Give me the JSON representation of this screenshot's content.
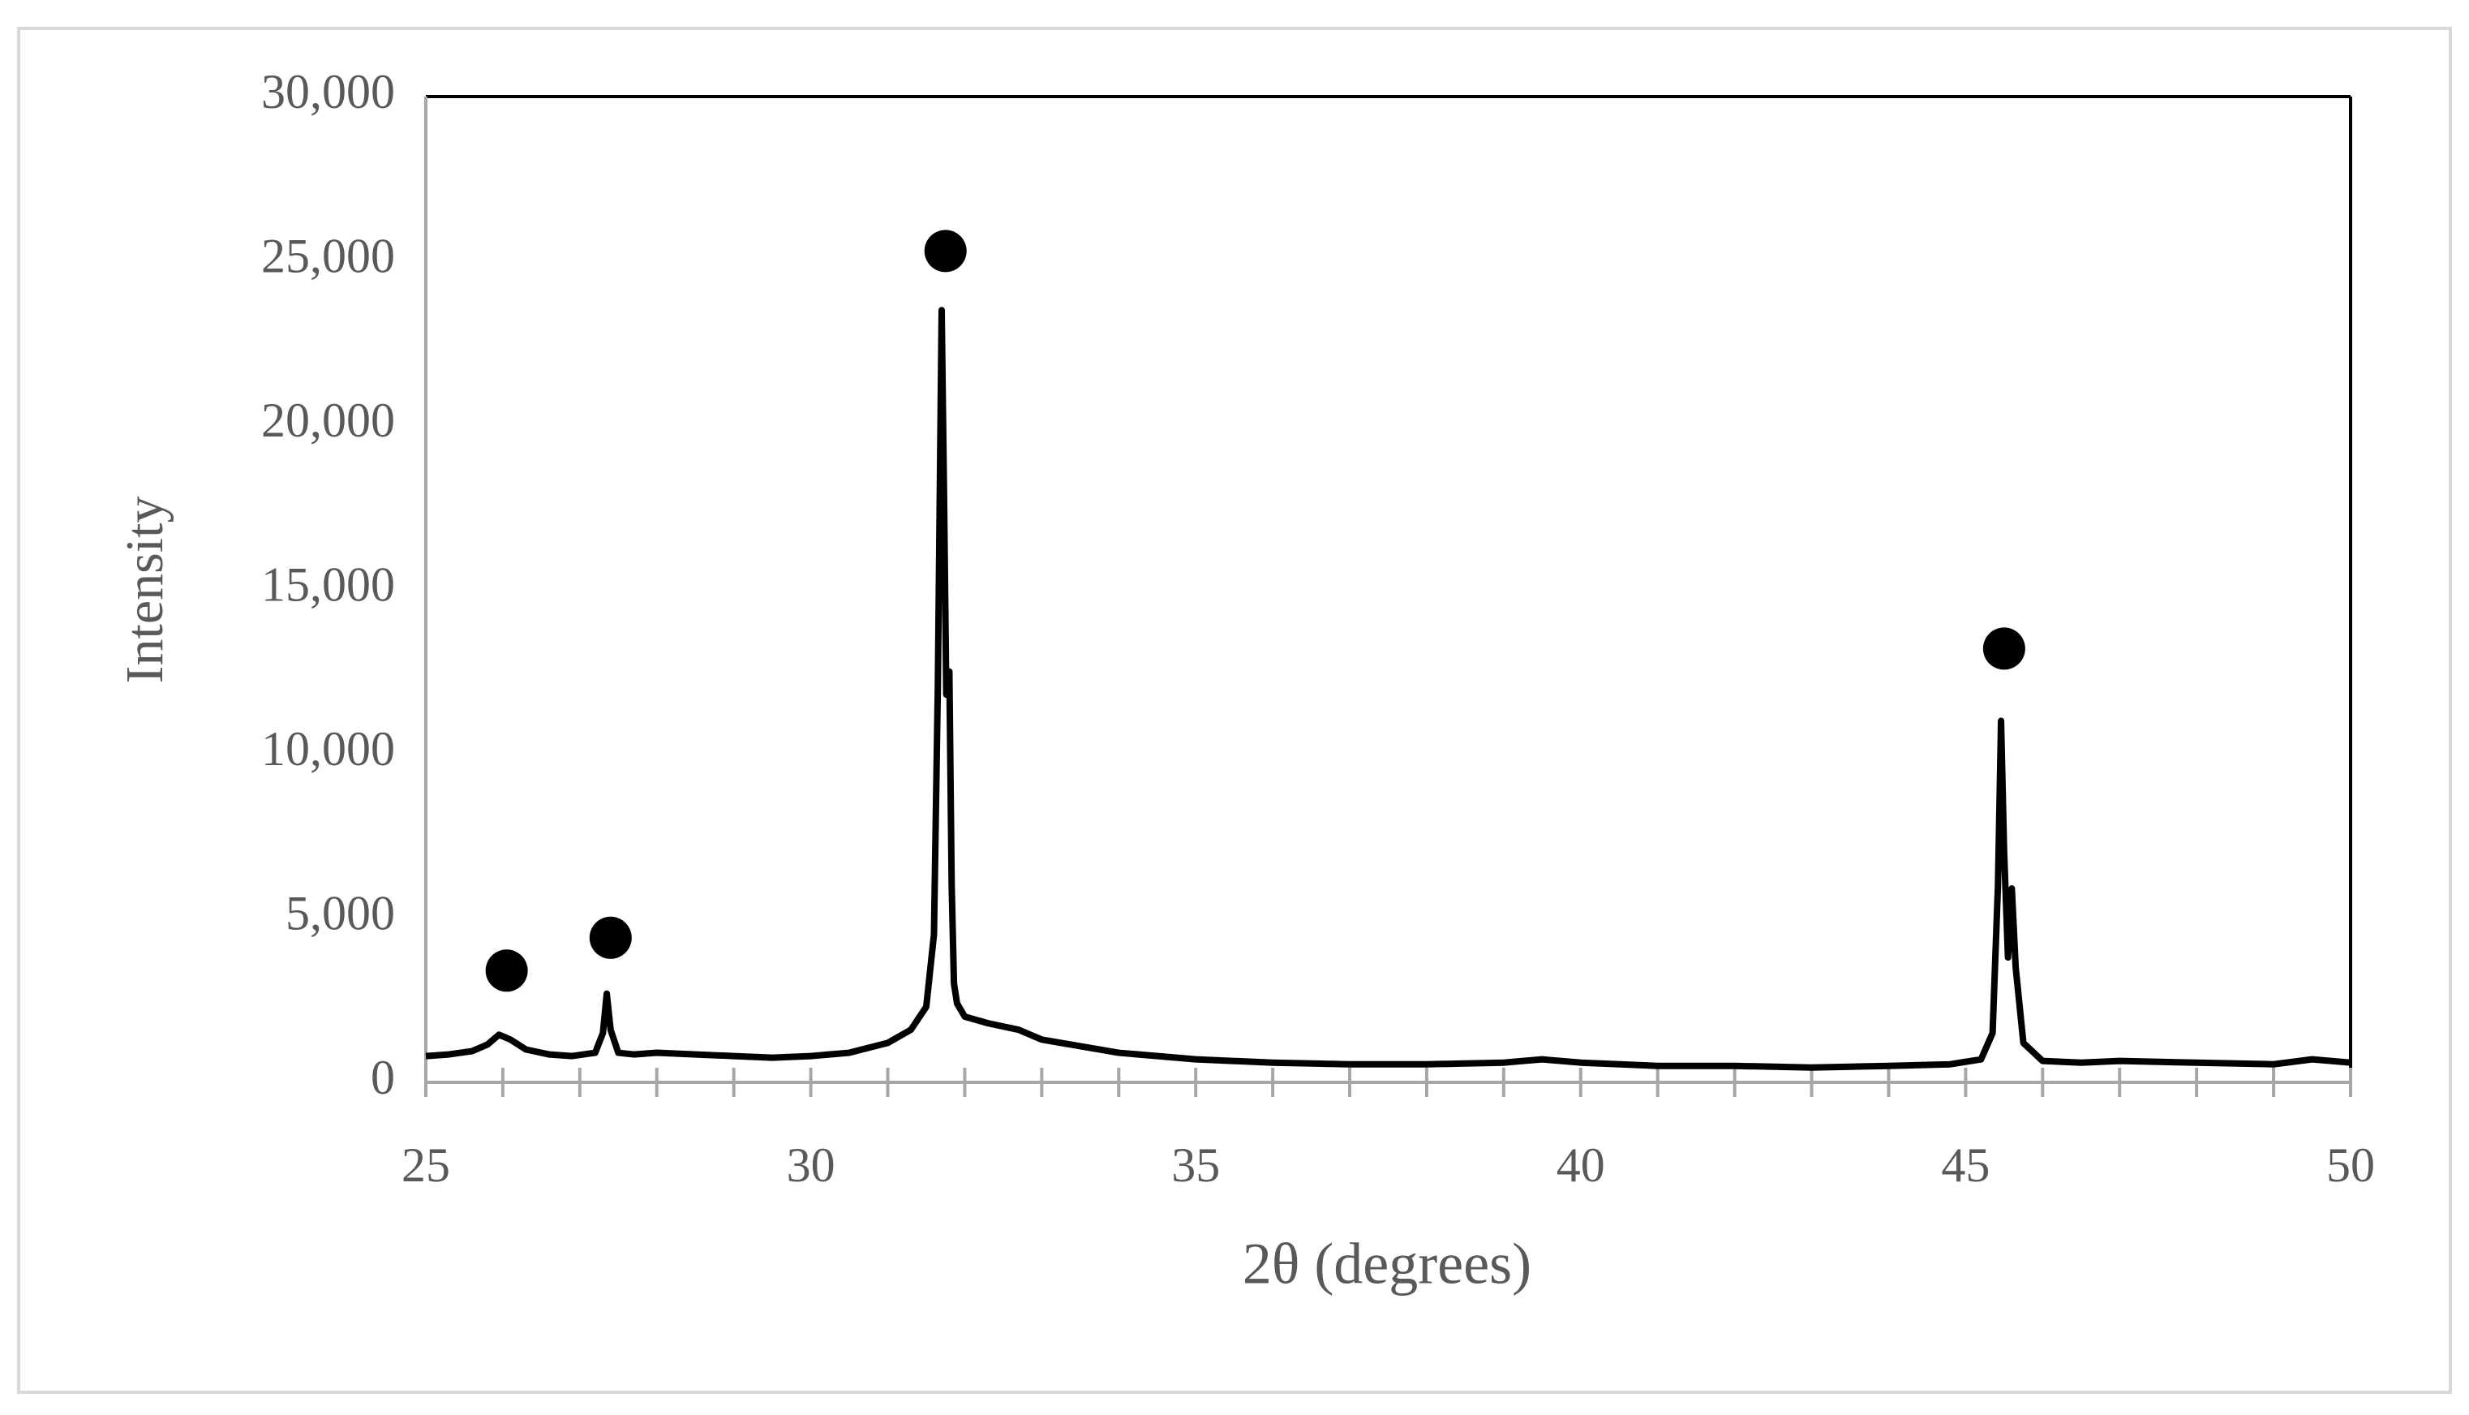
{
  "chart_data": {
    "type": "line",
    "xlabel": "2θ (degrees)",
    "ylabel": "Intensity",
    "x": [
      25,
      25.3,
      25.6,
      25.8,
      25.95,
      26.1,
      26.3,
      26.6,
      26.9,
      27.2,
      27.3,
      27.35,
      27.4,
      27.5,
      27.7,
      28,
      28.5,
      29,
      29.5,
      30,
      30.5,
      31,
      31.3,
      31.5,
      31.6,
      31.65,
      31.7,
      31.73,
      31.76,
      31.8,
      31.83,
      31.86,
      31.9,
      32,
      32.3,
      32.7,
      33,
      33.5,
      34,
      35,
      36,
      37,
      38,
      39,
      39.5,
      40,
      41,
      42,
      43,
      44,
      44.8,
      45.2,
      45.35,
      45.42,
      45.46,
      45.5,
      45.55,
      45.6,
      45.65,
      45.75,
      46,
      46.5,
      47,
      48,
      49,
      49.5,
      50
    ],
    "values": [
      800,
      850,
      950,
      1150,
      1450,
      1300,
      1000,
      850,
      800,
      900,
      1500,
      2700,
      1600,
      900,
      850,
      900,
      850,
      800,
      750,
      800,
      900,
      1200,
      1600,
      2300,
      4500,
      12000,
      23500,
      18000,
      11800,
      12500,
      6000,
      3000,
      2400,
      2000,
      1800,
      1600,
      1300,
      1100,
      900,
      700,
      600,
      550,
      550,
      600,
      700,
      600,
      500,
      500,
      450,
      500,
      550,
      700,
      1500,
      6000,
      11000,
      7000,
      3800,
      5900,
      3500,
      1200,
      650,
      600,
      650,
      600,
      550,
      700,
      600
    ],
    "color": "#000000",
    "peak_markers": {
      "x": [
        26.05,
        27.4,
        31.75,
        45.5
      ],
      "y": [
        3400,
        4400,
        25300,
        13200
      ]
    },
    "xlim": [
      25,
      50
    ],
    "xticks": [
      25,
      30,
      35,
      40,
      45,
      50
    ],
    "xminorticks": [
      26,
      27,
      28,
      29,
      31,
      32,
      33,
      34,
      36,
      37,
      38,
      39,
      41,
      42,
      43,
      44,
      46,
      47,
      48,
      49
    ],
    "ylim": [
      0,
      30000
    ],
    "yticks": [
      0,
      {
        "value": 5000,
        "label": "5,000"
      },
      {
        "value": 10000,
        "label": "10,000"
      },
      {
        "value": 15000,
        "label": "15,000"
      },
      {
        "value": 20000,
        "label": "20,000"
      },
      {
        "value": 25000,
        "label": "25,000"
      },
      {
        "value": 30000,
        "label": "30,000"
      }
    ],
    "grid": false
  }
}
